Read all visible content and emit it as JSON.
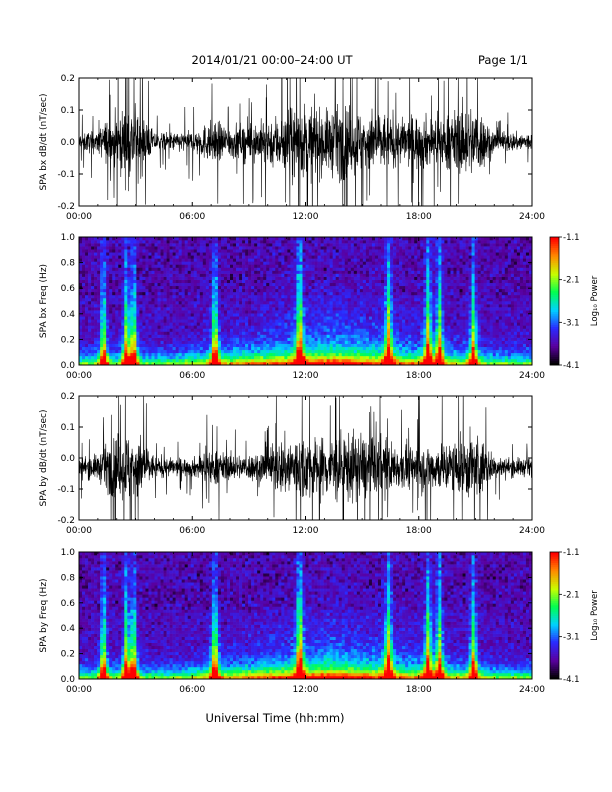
{
  "header": {
    "date_range": "2014/01/21   00:00–24:00 UT",
    "page": "Page 1/1"
  },
  "footer": {
    "xlabel": "Universal Time (hh:mm)"
  },
  "chart_data": [
    {
      "type": "line",
      "title": "",
      "ylabel": "SPA bx dB/dt (nT/sec)",
      "xlabel": "",
      "xlim": [
        0,
        24
      ],
      "ylim": [
        -0.2,
        0.2
      ],
      "x_ticks": [
        "00:00",
        "06:00",
        "12:00",
        "18:00",
        "24:00"
      ],
      "y_ticks": [
        "-0.2",
        "-0.1",
        "0.0",
        "0.1",
        "0.2"
      ],
      "trace_color": "#000000",
      "activity_envelope": [
        {
          "hour": 0,
          "amplitude": 0.05
        },
        {
          "hour": 1,
          "amplitude": 0.06
        },
        {
          "hour": 1.5,
          "amplitude": 0.12
        },
        {
          "hour": 2,
          "amplitude": 0.16
        },
        {
          "hour": 3,
          "amplitude": 0.2
        },
        {
          "hour": 4,
          "amplitude": 0.05
        },
        {
          "hour": 5,
          "amplitude": 0.05
        },
        {
          "hour": 6,
          "amplitude": 0.06
        },
        {
          "hour": 7,
          "amplitude": 0.11
        },
        {
          "hour": 8,
          "amplitude": 0.09
        },
        {
          "hour": 9,
          "amplitude": 0.1
        },
        {
          "hour": 10,
          "amplitude": 0.12
        },
        {
          "hour": 11,
          "amplitude": 0.18
        },
        {
          "hour": 12,
          "amplitude": 0.2
        },
        {
          "hour": 13,
          "amplitude": 0.16
        },
        {
          "hour": 14,
          "amplitude": 0.2
        },
        {
          "hour": 15,
          "amplitude": 0.17
        },
        {
          "hour": 16,
          "amplitude": 0.16
        },
        {
          "hour": 17,
          "amplitude": 0.12
        },
        {
          "hour": 18,
          "amplitude": 0.15
        },
        {
          "hour": 19,
          "amplitude": 0.12
        },
        {
          "hour": 20,
          "amplitude": 0.17
        },
        {
          "hour": 21,
          "amplitude": 0.2
        },
        {
          "hour": 22,
          "amplitude": 0.06
        },
        {
          "hour": 23,
          "amplitude": 0.05
        },
        {
          "hour": 24,
          "amplitude": 0.05
        }
      ]
    },
    {
      "type": "heatmap",
      "title": "",
      "ylabel": "SPA bx Freq (Hz)",
      "xlabel": "",
      "xlim": [
        0,
        24
      ],
      "ylim": [
        0,
        1.0
      ],
      "x_ticks": [
        "00:00",
        "06:00",
        "12:00",
        "18:00",
        "24:00"
      ],
      "y_ticks": [
        "0.0",
        "0.2",
        "0.4",
        "0.6",
        "0.8",
        "1.0"
      ],
      "colorbar": {
        "label": "Log₁₀ Power",
        "range": [
          -4.1,
          -1.1
        ],
        "ticks": [
          "-1.1",
          "-2.1",
          "-3.1",
          "-4.1"
        ],
        "colormap": [
          "#000000",
          "#5a00a0",
          "#2a2aff",
          "#00d2ff",
          "#00ff50",
          "#c8ff00",
          "#ff8c00",
          "#ff0000"
        ]
      },
      "hot_bands_hours": [
        1.3,
        2.5,
        2.9,
        7.2,
        11.7,
        16.4,
        18.5,
        19.1,
        20.9
      ]
    },
    {
      "type": "line",
      "title": "",
      "ylabel": "SPA by dB/dt (nT/sec)",
      "xlabel": "",
      "xlim": [
        0,
        24
      ],
      "ylim": [
        -0.2,
        0.2
      ],
      "x_ticks": [
        "00:00",
        "06:00",
        "12:00",
        "18:00",
        "24:00"
      ],
      "y_ticks": [
        "-0.2",
        "-0.1",
        "0.0",
        "0.1",
        "0.2"
      ],
      "trace_color": "#000000",
      "activity_envelope": [
        {
          "hour": 0,
          "amplitude": 0.05
        },
        {
          "hour": 1,
          "amplitude": 0.07
        },
        {
          "hour": 1.5,
          "amplitude": 0.13
        },
        {
          "hour": 2,
          "amplitude": 0.18
        },
        {
          "hour": 3,
          "amplitude": 0.2
        },
        {
          "hour": 4,
          "amplitude": 0.06
        },
        {
          "hour": 5,
          "amplitude": 0.05
        },
        {
          "hour": 6,
          "amplitude": 0.05
        },
        {
          "hour": 7,
          "amplitude": 0.1
        },
        {
          "hour": 8,
          "amplitude": 0.07
        },
        {
          "hour": 9,
          "amplitude": 0.07
        },
        {
          "hour": 10,
          "amplitude": 0.11
        },
        {
          "hour": 11,
          "amplitude": 0.17
        },
        {
          "hour": 12,
          "amplitude": 0.18
        },
        {
          "hour": 13,
          "amplitude": 0.17
        },
        {
          "hour": 14,
          "amplitude": 0.2
        },
        {
          "hour": 15,
          "amplitude": 0.18
        },
        {
          "hour": 16,
          "amplitude": 0.17
        },
        {
          "hour": 17,
          "amplitude": 0.11
        },
        {
          "hour": 18,
          "amplitude": 0.13
        },
        {
          "hour": 19,
          "amplitude": 0.13
        },
        {
          "hour": 20,
          "amplitude": 0.15
        },
        {
          "hour": 21,
          "amplitude": 0.2
        },
        {
          "hour": 22,
          "amplitude": 0.06
        },
        {
          "hour": 23,
          "amplitude": 0.05
        },
        {
          "hour": 24,
          "amplitude": 0.05
        }
      ]
    },
    {
      "type": "heatmap",
      "title": "",
      "ylabel": "SPA by Freq (Hz)",
      "xlabel": "",
      "xlim": [
        0,
        24
      ],
      "ylim": [
        0,
        1.0
      ],
      "x_ticks": [
        "00:00",
        "06:00",
        "12:00",
        "18:00",
        "24:00"
      ],
      "y_ticks": [
        "0.0",
        "0.2",
        "0.4",
        "0.6",
        "0.8",
        "1.0"
      ],
      "colorbar": {
        "label": "Log₁₀ Power",
        "range": [
          -4.1,
          -1.1
        ],
        "ticks": [
          "-1.1",
          "-2.1",
          "-3.1",
          "-4.1"
        ],
        "colormap": [
          "#000000",
          "#5a00a0",
          "#2a2aff",
          "#00d2ff",
          "#00ff50",
          "#c8ff00",
          "#ff8c00",
          "#ff0000"
        ]
      },
      "hot_bands_hours": [
        1.3,
        2.5,
        2.9,
        7.2,
        11.7,
        16.4,
        18.5,
        19.1,
        20.9
      ]
    }
  ]
}
